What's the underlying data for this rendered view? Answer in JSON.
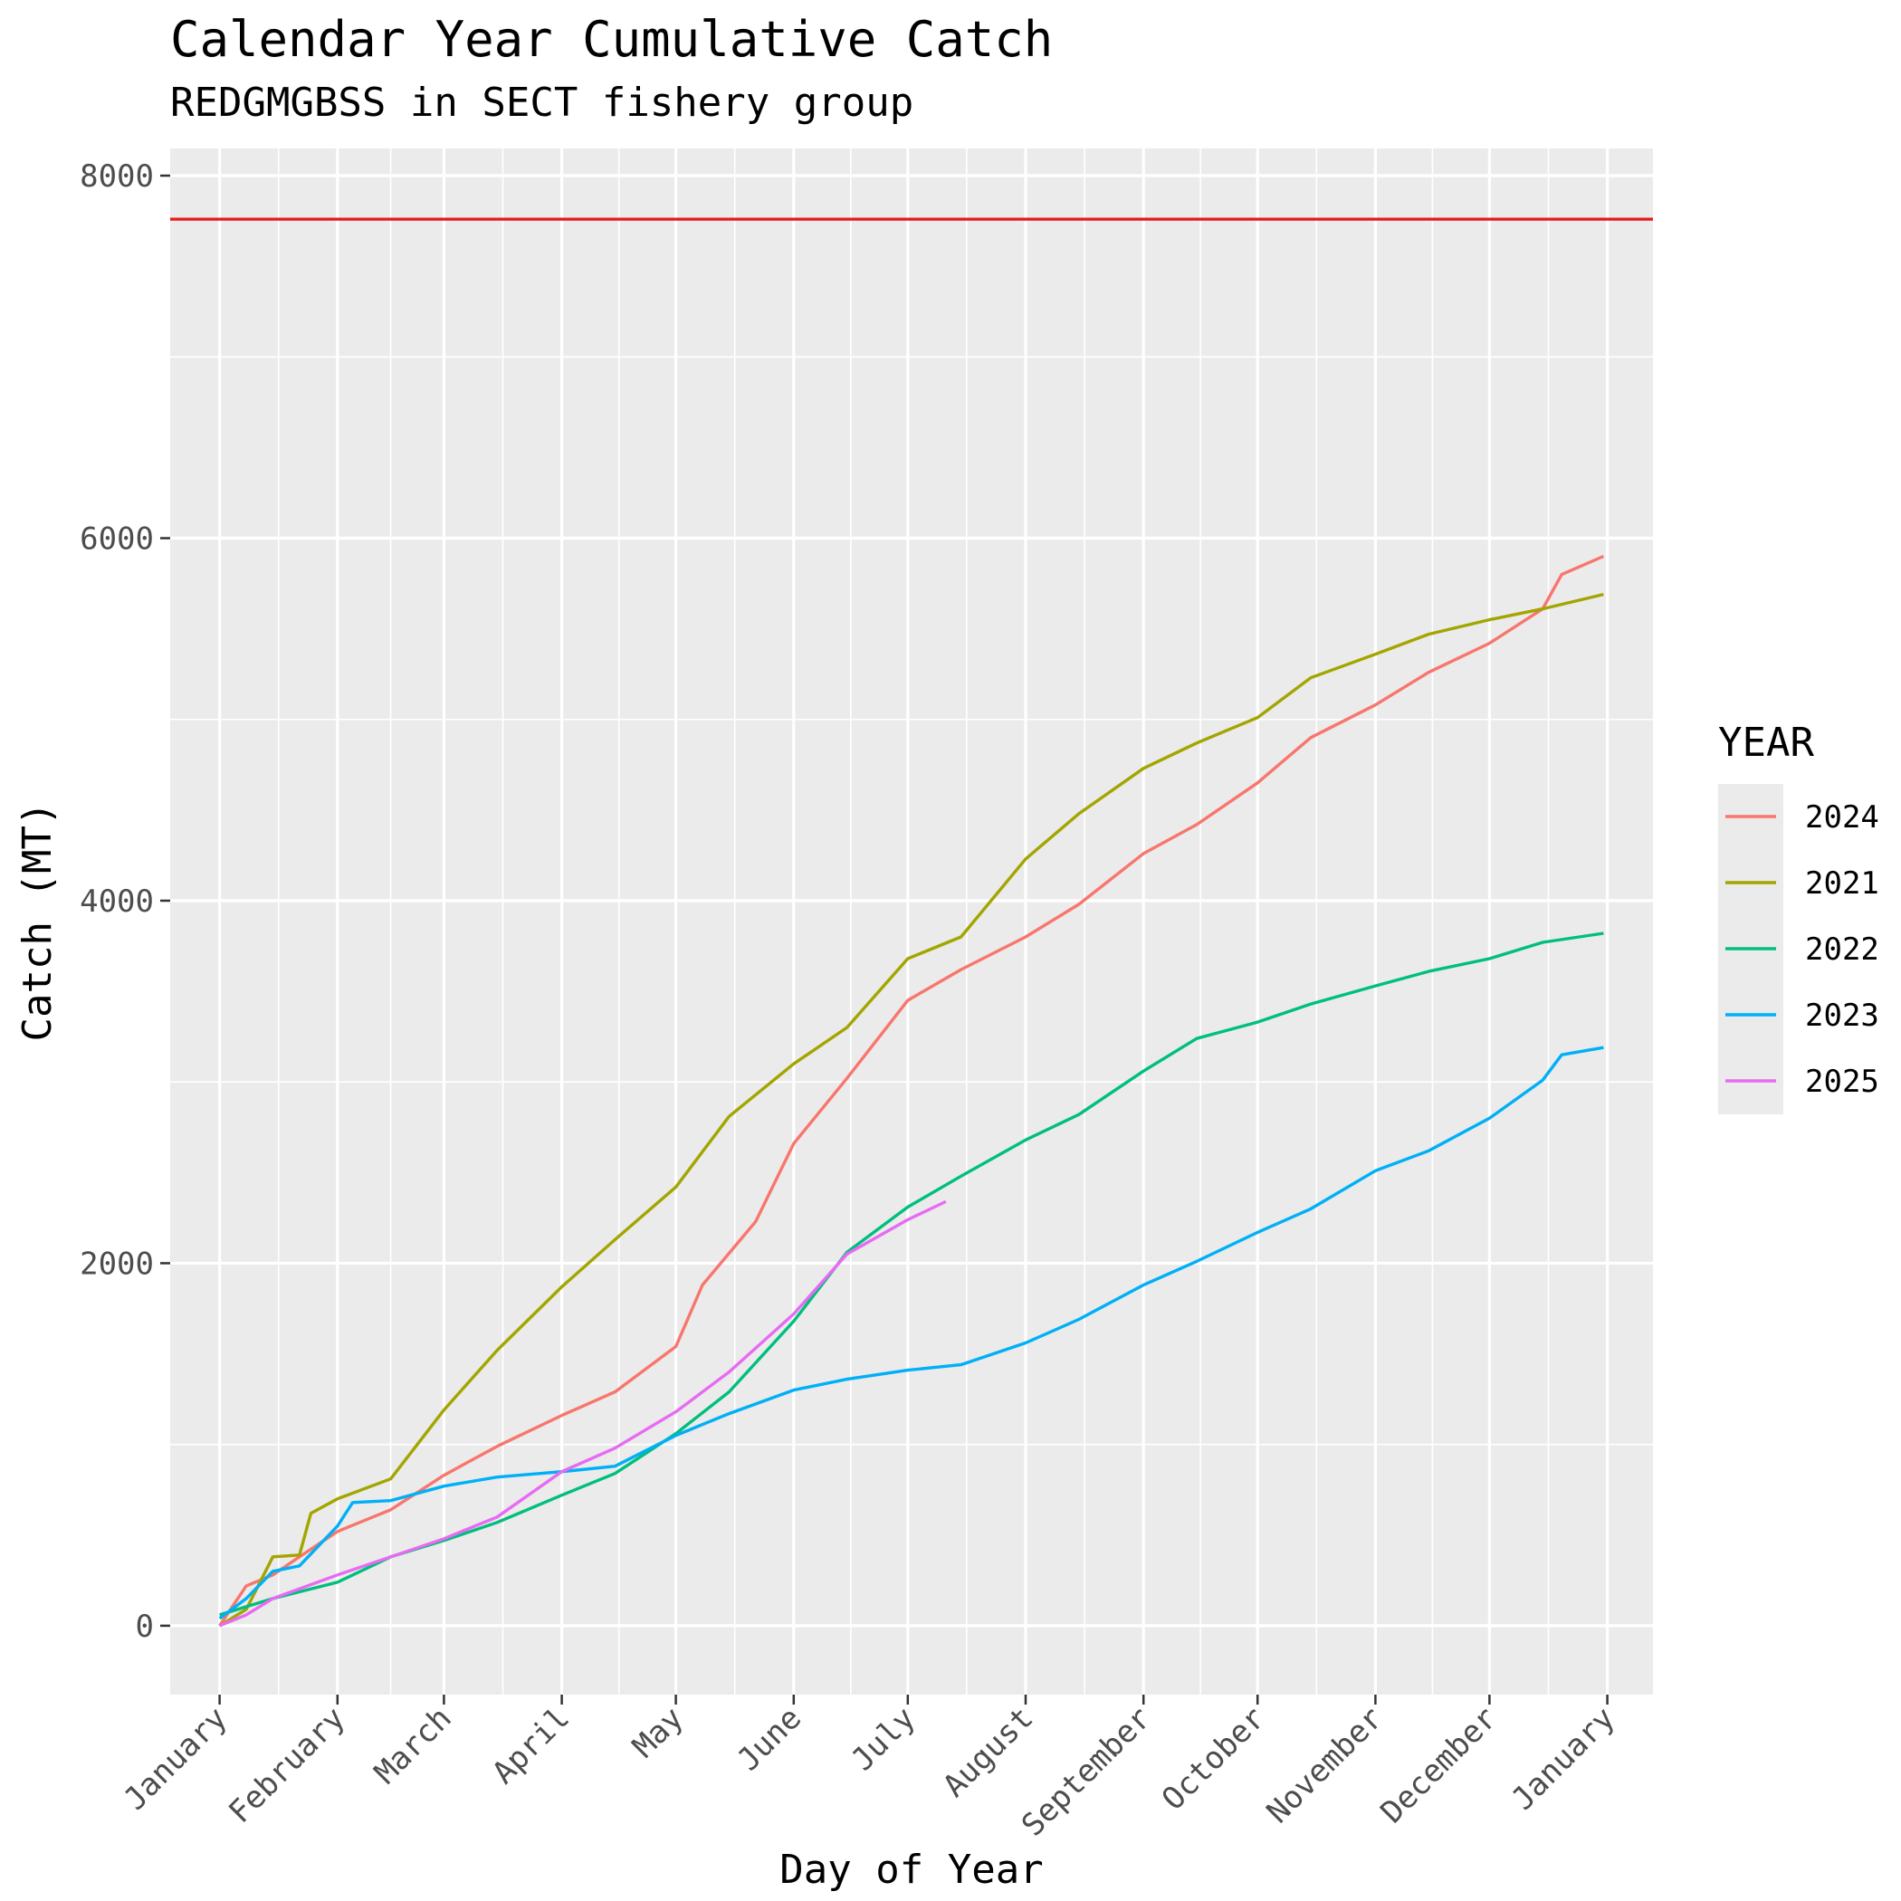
{
  "chart_data": {
    "type": "line",
    "title": "Calendar Year Cumulative Catch",
    "subtitle": "REDGMGBSS in SECT fishery group",
    "xlabel": "Day of Year",
    "ylabel": "Catch (MT)",
    "x_unit": "date",
    "xlim": [
      "2024-12-19",
      "2026-01-13"
    ],
    "ylim": [
      -380,
      8150
    ],
    "x_ticks": [
      {
        "label": "January",
        "date": "2025-01-01"
      },
      {
        "label": "February",
        "date": "2025-02-01"
      },
      {
        "label": "March",
        "date": "2025-03-01"
      },
      {
        "label": "April",
        "date": "2025-04-01"
      },
      {
        "label": "May",
        "date": "2025-05-01"
      },
      {
        "label": "June",
        "date": "2025-06-01"
      },
      {
        "label": "July",
        "date": "2025-07-01"
      },
      {
        "label": "August",
        "date": "2025-08-01"
      },
      {
        "label": "September",
        "date": "2025-09-01"
      },
      {
        "label": "October",
        "date": "2025-10-01"
      },
      {
        "label": "November",
        "date": "2025-11-01"
      },
      {
        "label": "December",
        "date": "2025-12-01"
      },
      {
        "label": "January",
        "date": "2026-01-01"
      }
    ],
    "y_ticks": [
      {
        "label": "0",
        "value": 0
      },
      {
        "label": "2000",
        "value": 2000
      },
      {
        "label": "4000",
        "value": 4000
      },
      {
        "label": "6000",
        "value": 6000
      },
      {
        "label": "8000",
        "value": 8000
      }
    ],
    "grid": true,
    "legend": {
      "title": "YEAR",
      "position": "right"
    },
    "reference_line": {
      "y": 7760,
      "color": "#e41a1c"
    },
    "series": [
      {
        "name": "2024",
        "color": "#F8766D",
        "points": [
          [
            "2025-01-01",
            0
          ],
          [
            "2025-01-08",
            220
          ],
          [
            "2025-01-15",
            280
          ],
          [
            "2025-01-22",
            380
          ],
          [
            "2025-02-01",
            520
          ],
          [
            "2025-02-15",
            640
          ],
          [
            "2025-03-01",
            830
          ],
          [
            "2025-03-15",
            990
          ],
          [
            "2025-04-01",
            1160
          ],
          [
            "2025-04-15",
            1290
          ],
          [
            "2025-05-01",
            1540
          ],
          [
            "2025-05-08",
            1880
          ],
          [
            "2025-05-22",
            2230
          ],
          [
            "2025-06-01",
            2660
          ],
          [
            "2025-06-15",
            3020
          ],
          [
            "2025-07-01",
            3450
          ],
          [
            "2025-07-15",
            3620
          ],
          [
            "2025-08-01",
            3800
          ],
          [
            "2025-08-15",
            3980
          ],
          [
            "2025-09-01",
            4260
          ],
          [
            "2025-09-15",
            4420
          ],
          [
            "2025-10-01",
            4650
          ],
          [
            "2025-10-15",
            4900
          ],
          [
            "2025-11-01",
            5080
          ],
          [
            "2025-11-15",
            5260
          ],
          [
            "2025-12-01",
            5420
          ],
          [
            "2025-12-15",
            5610
          ],
          [
            "2025-12-20",
            5800
          ],
          [
            "2025-12-31",
            5900
          ]
        ]
      },
      {
        "name": "2021",
        "color": "#A3A500",
        "points": [
          [
            "2025-01-01",
            0
          ],
          [
            "2025-01-08",
            90
          ],
          [
            "2025-01-15",
            380
          ],
          [
            "2025-01-22",
            390
          ],
          [
            "2025-01-25",
            620
          ],
          [
            "2025-02-01",
            700
          ],
          [
            "2025-02-15",
            810
          ],
          [
            "2025-03-01",
            1190
          ],
          [
            "2025-03-15",
            1520
          ],
          [
            "2025-04-01",
            1870
          ],
          [
            "2025-04-15",
            2130
          ],
          [
            "2025-05-01",
            2420
          ],
          [
            "2025-05-15",
            2810
          ],
          [
            "2025-06-01",
            3100
          ],
          [
            "2025-06-15",
            3300
          ],
          [
            "2025-07-01",
            3680
          ],
          [
            "2025-07-15",
            3800
          ],
          [
            "2025-08-01",
            4230
          ],
          [
            "2025-08-15",
            4480
          ],
          [
            "2025-09-01",
            4730
          ],
          [
            "2025-09-15",
            4870
          ],
          [
            "2025-10-01",
            5010
          ],
          [
            "2025-10-15",
            5230
          ],
          [
            "2025-11-01",
            5360
          ],
          [
            "2025-11-15",
            5470
          ],
          [
            "2025-12-01",
            5550
          ],
          [
            "2025-12-15",
            5610
          ],
          [
            "2025-12-31",
            5690
          ]
        ]
      },
      {
        "name": "2022",
        "color": "#00BF7D",
        "points": [
          [
            "2025-01-01",
            60
          ],
          [
            "2025-01-15",
            150
          ],
          [
            "2025-02-01",
            240
          ],
          [
            "2025-02-15",
            380
          ],
          [
            "2025-03-01",
            470
          ],
          [
            "2025-03-15",
            570
          ],
          [
            "2025-04-01",
            720
          ],
          [
            "2025-04-15",
            840
          ],
          [
            "2025-05-01",
            1060
          ],
          [
            "2025-05-15",
            1290
          ],
          [
            "2025-06-01",
            1680
          ],
          [
            "2025-06-15",
            2060
          ],
          [
            "2025-07-01",
            2310
          ],
          [
            "2025-07-15",
            2480
          ],
          [
            "2025-08-01",
            2680
          ],
          [
            "2025-08-15",
            2820
          ],
          [
            "2025-09-01",
            3060
          ],
          [
            "2025-09-15",
            3240
          ],
          [
            "2025-10-01",
            3330
          ],
          [
            "2025-10-15",
            3430
          ],
          [
            "2025-11-01",
            3530
          ],
          [
            "2025-11-15",
            3610
          ],
          [
            "2025-12-01",
            3680
          ],
          [
            "2025-12-15",
            3770
          ],
          [
            "2025-12-31",
            3820
          ]
        ]
      },
      {
        "name": "2023",
        "color": "#00B0F6",
        "points": [
          [
            "2025-01-01",
            40
          ],
          [
            "2025-01-08",
            150
          ],
          [
            "2025-01-15",
            300
          ],
          [
            "2025-01-22",
            330
          ],
          [
            "2025-02-01",
            550
          ],
          [
            "2025-02-05",
            680
          ],
          [
            "2025-02-15",
            690
          ],
          [
            "2025-03-01",
            770
          ],
          [
            "2025-03-15",
            820
          ],
          [
            "2025-04-01",
            850
          ],
          [
            "2025-04-15",
            880
          ],
          [
            "2025-05-01",
            1050
          ],
          [
            "2025-05-15",
            1170
          ],
          [
            "2025-06-01",
            1300
          ],
          [
            "2025-06-15",
            1360
          ],
          [
            "2025-07-01",
            1410
          ],
          [
            "2025-07-15",
            1440
          ],
          [
            "2025-08-01",
            1560
          ],
          [
            "2025-08-15",
            1690
          ],
          [
            "2025-09-01",
            1880
          ],
          [
            "2025-09-15",
            2010
          ],
          [
            "2025-10-01",
            2170
          ],
          [
            "2025-10-15",
            2300
          ],
          [
            "2025-11-01",
            2510
          ],
          [
            "2025-11-15",
            2620
          ],
          [
            "2025-12-01",
            2800
          ],
          [
            "2025-12-15",
            3010
          ],
          [
            "2025-12-20",
            3150
          ],
          [
            "2025-12-31",
            3190
          ]
        ]
      },
      {
        "name": "2025",
        "color": "#E76BF3",
        "points": [
          [
            "2025-01-01",
            0
          ],
          [
            "2025-01-08",
            60
          ],
          [
            "2025-01-15",
            150
          ],
          [
            "2025-02-01",
            280
          ],
          [
            "2025-02-15",
            380
          ],
          [
            "2025-03-01",
            480
          ],
          [
            "2025-03-15",
            600
          ],
          [
            "2025-04-01",
            850
          ],
          [
            "2025-04-15",
            980
          ],
          [
            "2025-05-01",
            1180
          ],
          [
            "2025-05-15",
            1400
          ],
          [
            "2025-06-01",
            1720
          ],
          [
            "2025-06-15",
            2050
          ],
          [
            "2025-07-01",
            2240
          ],
          [
            "2025-07-11",
            2340
          ]
        ]
      }
    ]
  }
}
